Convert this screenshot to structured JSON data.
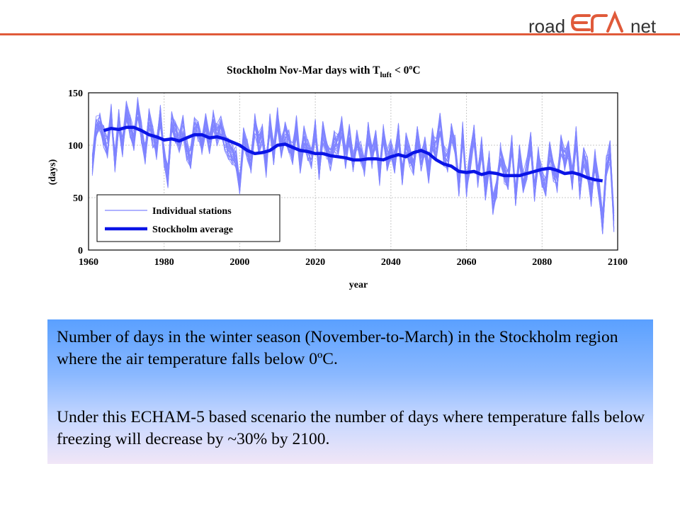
{
  "logo": {
    "left_text": "road",
    "right_text": "net",
    "accent_color": "#e05a3a"
  },
  "chart_data": {
    "type": "line",
    "title_main": "Stockholm Nov-Mar days with T",
    "title_sub": "luft",
    "title_tail": "< 0",
    "title_sup": "o",
    "title_unit": "C",
    "xlabel": "year",
    "ylabel": "(days)",
    "xlim": [
      1960,
      2100
    ],
    "ylim": [
      0,
      150
    ],
    "xticks": [
      1960,
      1980,
      2000,
      2020,
      2040,
      2060,
      2080,
      2100
    ],
    "yticks": [
      0,
      50,
      100,
      150
    ],
    "grid": true,
    "legend_position": "lower-left",
    "legend": [
      "Individual stations",
      "Stockholm average"
    ],
    "colors": {
      "stations": "#7f84ff",
      "average": "#0a14e6",
      "grid": "#c8c8c8"
    },
    "series": [
      {
        "name": "Stockholm average",
        "x": [
          1964,
          1966,
          1968,
          1970,
          1972,
          1974,
          1976,
          1978,
          1980,
          1982,
          1984,
          1986,
          1988,
          1990,
          1992,
          1994,
          1996,
          1998,
          2000,
          2002,
          2004,
          2006,
          2008,
          2010,
          2012,
          2014,
          2016,
          2018,
          2020,
          2022,
          2024,
          2026,
          2028,
          2030,
          2032,
          2034,
          2036,
          2038,
          2040,
          2042,
          2044,
          2046,
          2048,
          2050,
          2052,
          2054,
          2056,
          2058,
          2060,
          2062,
          2064,
          2066,
          2068,
          2070,
          2072,
          2074,
          2076,
          2078,
          2080,
          2082,
          2084,
          2086,
          2088,
          2090,
          2092,
          2094,
          2096
        ],
        "values": [
          114,
          116,
          115,
          117,
          117,
          114,
          110,
          108,
          105,
          106,
          104,
          107,
          110,
          110,
          107,
          108,
          106,
          103,
          100,
          95,
          92,
          93,
          95,
          100,
          101,
          98,
          95,
          94,
          92,
          92,
          90,
          89,
          88,
          86,
          86,
          87,
          87,
          86,
          89,
          91,
          89,
          93,
          95,
          92,
          86,
          82,
          80,
          75,
          74,
          75,
          72,
          74,
          73,
          71,
          71,
          71,
          73,
          75,
          77,
          78,
          76,
          73,
          74,
          72,
          69,
          67,
          66
        ]
      },
      {
        "name": "Individual stations",
        "count": 24,
        "x_start": 1961,
        "x_end": 2099,
        "values": [
          80,
          118,
          122,
          108,
          98,
          130,
          85,
          124,
          98,
          132,
          118,
          105,
          136,
          112,
          92,
          126,
          108,
          96,
          128,
          90,
          70,
          122,
          112,
          104,
          118,
          96,
          88,
          116,
          112,
          98,
          120,
          102,
          124,
          110,
          118,
          104,
          96,
          92,
          88,
          62,
          106,
          96,
          84,
          120,
          102,
          112,
          80,
          120,
          92,
          126,
          98,
          114,
          104,
          92,
          118,
          82,
          108,
          96,
          88,
          116,
          76,
          112,
          94,
          86,
          104,
          100,
          118,
          88,
          110,
          84,
          106,
          94,
          80,
          112,
          88,
          104,
          72,
          110,
          86,
          96,
          84,
          112,
          72,
          102,
          90,
          82,
          108,
          84,
          100,
          74,
          106,
          96,
          120,
          90,
          84,
          110,
          100,
          62,
          112,
          60,
          86,
          110,
          70,
          98,
          58,
          84,
          44,
          60,
          92,
          74,
          66,
          100,
          50,
          92,
          64,
          78,
          102,
          56,
          88,
          70,
          62,
          96,
          74,
          64,
          100,
          86,
          96,
          68,
          108,
          58,
          90,
          78,
          52,
          86,
          60,
          26,
          80,
          94,
          28
        ]
      }
    ]
  },
  "caption": {
    "para1": "Number of days in the winter season (November-to-March) in the Stockholm region where the air temperature falls below 0ºC.",
    "para2": "Under this ECHAM-5 based scenario the number of days where temperature falls below freezing will decrease by ~30% by 2100."
  }
}
